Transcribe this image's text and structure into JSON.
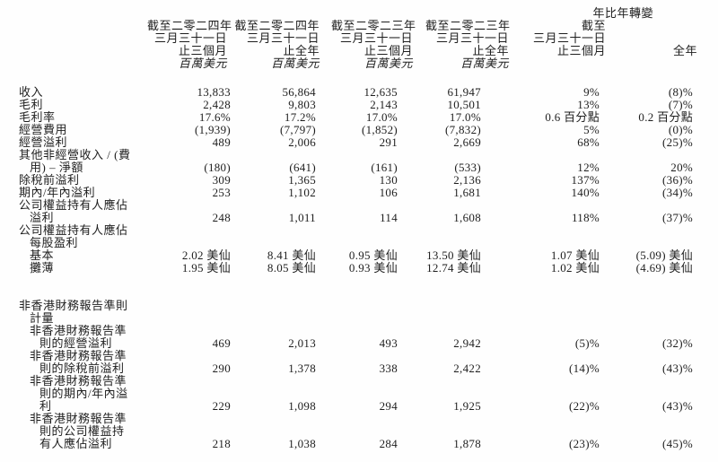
{
  "page": {
    "background": "#fefefe",
    "text_color": "#1e1e1e",
    "unit_note_style": "italic"
  },
  "table": {
    "yoy_group_label": "年比年轉變",
    "columns": [
      {
        "line1": "截至二零二四年",
        "line2": "三月三十一日",
        "line3": "止三個月",
        "line4": "百萬美元"
      },
      {
        "line1": "截至二零二四年",
        "line2": "三月三十一日",
        "line3": "止全年",
        "line4": "百萬美元"
      },
      {
        "line1": "截至二零二三年",
        "line2": "三月三十一日",
        "line3": "止三個月",
        "line4": "百萬美元"
      },
      {
        "line1": "截至二零二三年",
        "line2": "三月三十一日",
        "line3": "止全年",
        "line4": "百萬美元"
      },
      {
        "line1": "截至",
        "line2": "三月三十一日",
        "line3": "止三個月",
        "line4": ""
      },
      {
        "line1": "",
        "line2": "",
        "line3": "全年",
        "line4": ""
      }
    ],
    "rows": [
      {
        "label": [
          [
            "收入",
            0
          ]
        ],
        "values": [
          "13,833",
          "56,864",
          "12,635",
          "61,947",
          "9%",
          "(8)%"
        ]
      },
      {
        "label": [
          [
            "毛利",
            0
          ]
        ],
        "values": [
          "2,428",
          "9,803",
          "2,143",
          "10,501",
          "13%",
          "(7)%"
        ]
      },
      {
        "label": [
          [
            "毛利率",
            0
          ]
        ],
        "values": [
          "17.6%",
          "17.2%",
          "17.0%",
          "17.0%",
          "0.6 百分點",
          "0.2 百分點"
        ]
      },
      {
        "label": [
          [
            "經營費用",
            0
          ]
        ],
        "values": [
          "(1,939)",
          "(7,797)",
          "(1,852)",
          "(7,832)",
          "5%",
          "(0)%"
        ]
      },
      {
        "label": [
          [
            "經營溢利",
            0
          ]
        ],
        "values": [
          "489",
          "2,006",
          "291",
          "2,669",
          "68%",
          "(25)%"
        ]
      },
      {
        "label": [
          [
            "其他非經營收入 / (費",
            0
          ],
          [
            "用) – 淨額",
            1
          ]
        ],
        "values": [
          "(180)",
          "(641)",
          "(161)",
          "(533)",
          "12%",
          "20%"
        ]
      },
      {
        "label": [
          [
            "除稅前溢利",
            0
          ]
        ],
        "values": [
          "309",
          "1,365",
          "130",
          "2,136",
          "137%",
          "(36)%"
        ]
      },
      {
        "label": [
          [
            "期內/年內溢利",
            0
          ]
        ],
        "values": [
          "253",
          "1,102",
          "106",
          "1,681",
          "140%",
          "(34)%"
        ]
      },
      {
        "label": [
          [
            "公司權益持有人應佔",
            0
          ],
          [
            "溢利",
            1
          ]
        ],
        "values": [
          "248",
          "1,011",
          "114",
          "1,608",
          "118%",
          "(37)%"
        ]
      },
      {
        "label": [
          [
            "公司權益持有人應佔",
            0
          ],
          [
            "每股盈利",
            1
          ]
        ],
        "values": [
          "",
          "",
          "",
          "",
          "",
          ""
        ]
      },
      {
        "label": [
          [
            "基本",
            1
          ]
        ],
        "values": [
          "2.02 美仙",
          "8.41 美仙",
          "0.95 美仙",
          "13.50 美仙",
          "1.07 美仙",
          "(5.09) 美仙"
        ]
      },
      {
        "label": [
          [
            "攤薄",
            1
          ]
        ],
        "values": [
          "1.95 美仙",
          "8.05 美仙",
          "0.93 美仙",
          "12.74 美仙",
          "1.02 美仙",
          "(4.69) 美仙"
        ]
      },
      {
        "section_break": true,
        "label": [
          [
            "非香港財務報告準則",
            0
          ],
          [
            "計量",
            1
          ]
        ],
        "values": [
          "",
          "",
          "",
          "",
          "",
          ""
        ]
      },
      {
        "label": [
          [
            "非香港財務報告準",
            1
          ],
          [
            "則的經營溢利",
            2
          ]
        ],
        "values": [
          "469",
          "2,013",
          "493",
          "2,942",
          "(5)%",
          "(32)%"
        ]
      },
      {
        "label": [
          [
            "非香港財務報告準",
            1
          ],
          [
            "則的除稅前溢利",
            2
          ]
        ],
        "values": [
          "290",
          "1,378",
          "338",
          "2,422",
          "(14)%",
          "(43)%"
        ]
      },
      {
        "label": [
          [
            "非香港財務報告準",
            1
          ],
          [
            "則的期內/年內溢",
            2
          ],
          [
            "利",
            2
          ]
        ],
        "values": [
          "229",
          "1,098",
          "294",
          "1,925",
          "(22)%",
          "(43)%"
        ]
      },
      {
        "label": [
          [
            "非香港財務報告準",
            1
          ],
          [
            "則的公司權益持",
            2
          ],
          [
            "有人應佔溢利",
            2
          ]
        ],
        "values": [
          "218",
          "1,038",
          "284",
          "1,878",
          "(23)%",
          "(45)%"
        ]
      }
    ]
  }
}
